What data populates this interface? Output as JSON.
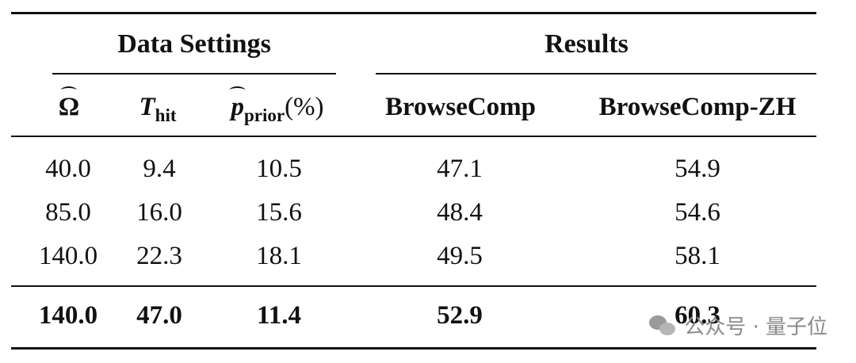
{
  "table": {
    "group_headers": [
      "Data Settings",
      "Results"
    ],
    "columns": {
      "omega": "Ω",
      "t": "T",
      "t_sub": "hit",
      "p": "p",
      "p_sub": "prior",
      "p_suffix": "(%)",
      "bc": "BrowseComp",
      "bczh": "BrowseComp-ZH"
    },
    "rows": [
      [
        "40.0",
        "9.4",
        "10.5",
        "47.1",
        "54.9"
      ],
      [
        "85.0",
        "16.0",
        "15.6",
        "48.4",
        "54.6"
      ],
      [
        "140.0",
        "22.3",
        "18.1",
        "49.5",
        "58.1"
      ],
      [
        "140.0",
        "47.0",
        "11.4",
        "52.9",
        "60.3"
      ]
    ]
  },
  "watermark": {
    "text": "公众号 · 量子位",
    "icon": "wechat-icon"
  }
}
